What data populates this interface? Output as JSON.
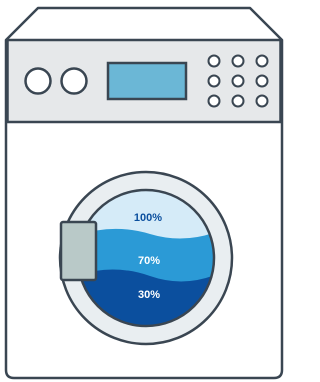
{
  "door": {
    "levels": [
      "100%",
      "70%",
      "30%"
    ]
  }
}
